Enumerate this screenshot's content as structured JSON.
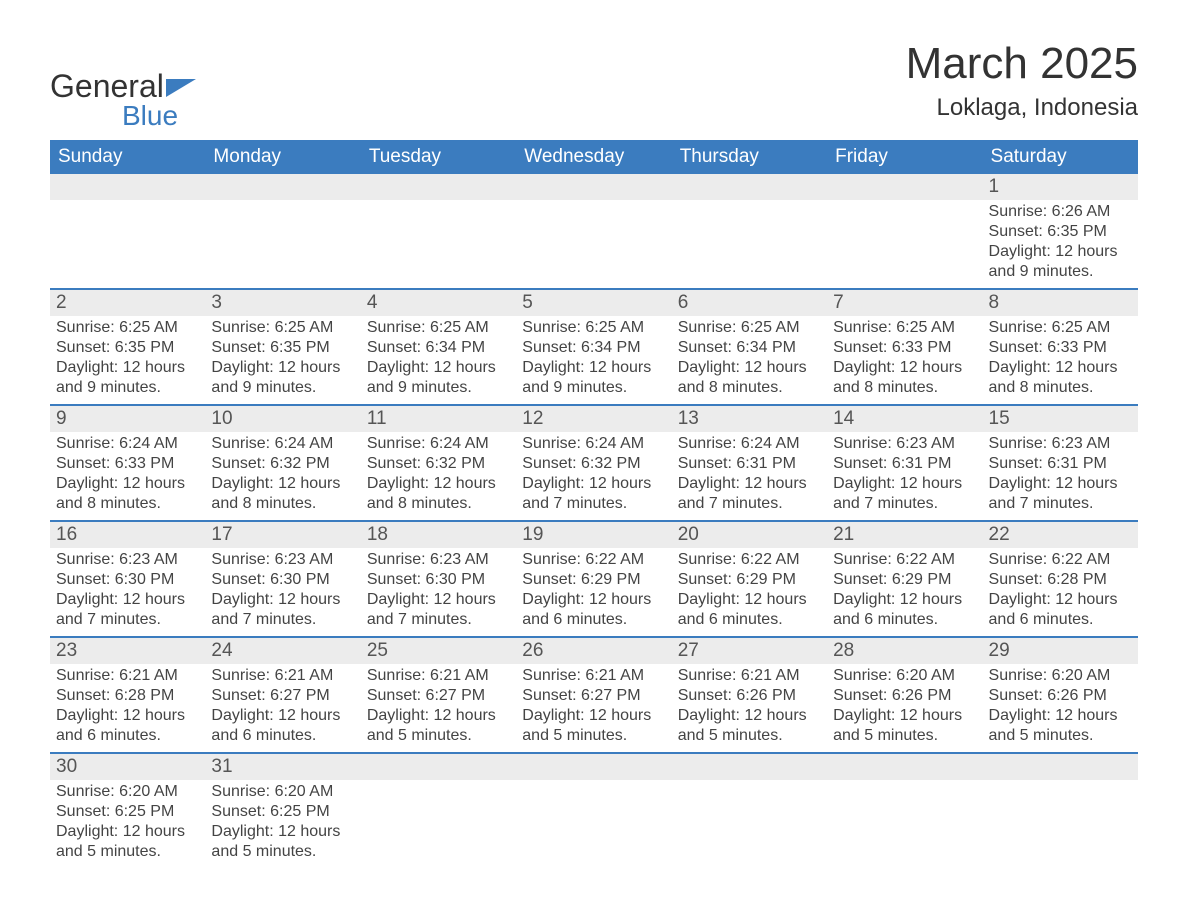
{
  "brand": {
    "name_part1": "General",
    "name_part2": "Blue",
    "color_primary": "#3b7cbf",
    "color_text": "#333333"
  },
  "header": {
    "month_title": "March 2025",
    "location": "Loklaga, Indonesia"
  },
  "calendar": {
    "header_bg": "#3b7cbf",
    "header_fg": "#ffffff",
    "row_sep_color": "#3b7cbf",
    "daynum_bg": "#ececec",
    "text_color": "#444444",
    "body_fontsize": 16,
    "header_fontsize": 19,
    "columns": [
      "Sunday",
      "Monday",
      "Tuesday",
      "Wednesday",
      "Thursday",
      "Friday",
      "Saturday"
    ],
    "weeks": [
      [
        {
          "blank": true
        },
        {
          "blank": true
        },
        {
          "blank": true
        },
        {
          "blank": true
        },
        {
          "blank": true
        },
        {
          "blank": true
        },
        {
          "day": "1",
          "sunrise": "Sunrise: 6:26 AM",
          "sunset": "Sunset: 6:35 PM",
          "daylight": "Daylight: 12 hours and 9 minutes."
        }
      ],
      [
        {
          "day": "2",
          "sunrise": "Sunrise: 6:25 AM",
          "sunset": "Sunset: 6:35 PM",
          "daylight": "Daylight: 12 hours and 9 minutes."
        },
        {
          "day": "3",
          "sunrise": "Sunrise: 6:25 AM",
          "sunset": "Sunset: 6:35 PM",
          "daylight": "Daylight: 12 hours and 9 minutes."
        },
        {
          "day": "4",
          "sunrise": "Sunrise: 6:25 AM",
          "sunset": "Sunset: 6:34 PM",
          "daylight": "Daylight: 12 hours and 9 minutes."
        },
        {
          "day": "5",
          "sunrise": "Sunrise: 6:25 AM",
          "sunset": "Sunset: 6:34 PM",
          "daylight": "Daylight: 12 hours and 9 minutes."
        },
        {
          "day": "6",
          "sunrise": "Sunrise: 6:25 AM",
          "sunset": "Sunset: 6:34 PM",
          "daylight": "Daylight: 12 hours and 8 minutes."
        },
        {
          "day": "7",
          "sunrise": "Sunrise: 6:25 AM",
          "sunset": "Sunset: 6:33 PM",
          "daylight": "Daylight: 12 hours and 8 minutes."
        },
        {
          "day": "8",
          "sunrise": "Sunrise: 6:25 AM",
          "sunset": "Sunset: 6:33 PM",
          "daylight": "Daylight: 12 hours and 8 minutes."
        }
      ],
      [
        {
          "day": "9",
          "sunrise": "Sunrise: 6:24 AM",
          "sunset": "Sunset: 6:33 PM",
          "daylight": "Daylight: 12 hours and 8 minutes."
        },
        {
          "day": "10",
          "sunrise": "Sunrise: 6:24 AM",
          "sunset": "Sunset: 6:32 PM",
          "daylight": "Daylight: 12 hours and 8 minutes."
        },
        {
          "day": "11",
          "sunrise": "Sunrise: 6:24 AM",
          "sunset": "Sunset: 6:32 PM",
          "daylight": "Daylight: 12 hours and 8 minutes."
        },
        {
          "day": "12",
          "sunrise": "Sunrise: 6:24 AM",
          "sunset": "Sunset: 6:32 PM",
          "daylight": "Daylight: 12 hours and 7 minutes."
        },
        {
          "day": "13",
          "sunrise": "Sunrise: 6:24 AM",
          "sunset": "Sunset: 6:31 PM",
          "daylight": "Daylight: 12 hours and 7 minutes."
        },
        {
          "day": "14",
          "sunrise": "Sunrise: 6:23 AM",
          "sunset": "Sunset: 6:31 PM",
          "daylight": "Daylight: 12 hours and 7 minutes."
        },
        {
          "day": "15",
          "sunrise": "Sunrise: 6:23 AM",
          "sunset": "Sunset: 6:31 PM",
          "daylight": "Daylight: 12 hours and 7 minutes."
        }
      ],
      [
        {
          "day": "16",
          "sunrise": "Sunrise: 6:23 AM",
          "sunset": "Sunset: 6:30 PM",
          "daylight": "Daylight: 12 hours and 7 minutes."
        },
        {
          "day": "17",
          "sunrise": "Sunrise: 6:23 AM",
          "sunset": "Sunset: 6:30 PM",
          "daylight": "Daylight: 12 hours and 7 minutes."
        },
        {
          "day": "18",
          "sunrise": "Sunrise: 6:23 AM",
          "sunset": "Sunset: 6:30 PM",
          "daylight": "Daylight: 12 hours and 7 minutes."
        },
        {
          "day": "19",
          "sunrise": "Sunrise: 6:22 AM",
          "sunset": "Sunset: 6:29 PM",
          "daylight": "Daylight: 12 hours and 6 minutes."
        },
        {
          "day": "20",
          "sunrise": "Sunrise: 6:22 AM",
          "sunset": "Sunset: 6:29 PM",
          "daylight": "Daylight: 12 hours and 6 minutes."
        },
        {
          "day": "21",
          "sunrise": "Sunrise: 6:22 AM",
          "sunset": "Sunset: 6:29 PM",
          "daylight": "Daylight: 12 hours and 6 minutes."
        },
        {
          "day": "22",
          "sunrise": "Sunrise: 6:22 AM",
          "sunset": "Sunset: 6:28 PM",
          "daylight": "Daylight: 12 hours and 6 minutes."
        }
      ],
      [
        {
          "day": "23",
          "sunrise": "Sunrise: 6:21 AM",
          "sunset": "Sunset: 6:28 PM",
          "daylight": "Daylight: 12 hours and 6 minutes."
        },
        {
          "day": "24",
          "sunrise": "Sunrise: 6:21 AM",
          "sunset": "Sunset: 6:27 PM",
          "daylight": "Daylight: 12 hours and 6 minutes."
        },
        {
          "day": "25",
          "sunrise": "Sunrise: 6:21 AM",
          "sunset": "Sunset: 6:27 PM",
          "daylight": "Daylight: 12 hours and 5 minutes."
        },
        {
          "day": "26",
          "sunrise": "Sunrise: 6:21 AM",
          "sunset": "Sunset: 6:27 PM",
          "daylight": "Daylight: 12 hours and 5 minutes."
        },
        {
          "day": "27",
          "sunrise": "Sunrise: 6:21 AM",
          "sunset": "Sunset: 6:26 PM",
          "daylight": "Daylight: 12 hours and 5 minutes."
        },
        {
          "day": "28",
          "sunrise": "Sunrise: 6:20 AM",
          "sunset": "Sunset: 6:26 PM",
          "daylight": "Daylight: 12 hours and 5 minutes."
        },
        {
          "day": "29",
          "sunrise": "Sunrise: 6:20 AM",
          "sunset": "Sunset: 6:26 PM",
          "daylight": "Daylight: 12 hours and 5 minutes."
        }
      ],
      [
        {
          "day": "30",
          "sunrise": "Sunrise: 6:20 AM",
          "sunset": "Sunset: 6:25 PM",
          "daylight": "Daylight: 12 hours and 5 minutes."
        },
        {
          "day": "31",
          "sunrise": "Sunrise: 6:20 AM",
          "sunset": "Sunset: 6:25 PM",
          "daylight": "Daylight: 12 hours and 5 minutes."
        },
        {
          "blank": true
        },
        {
          "blank": true
        },
        {
          "blank": true
        },
        {
          "blank": true
        },
        {
          "blank": true
        }
      ]
    ]
  }
}
